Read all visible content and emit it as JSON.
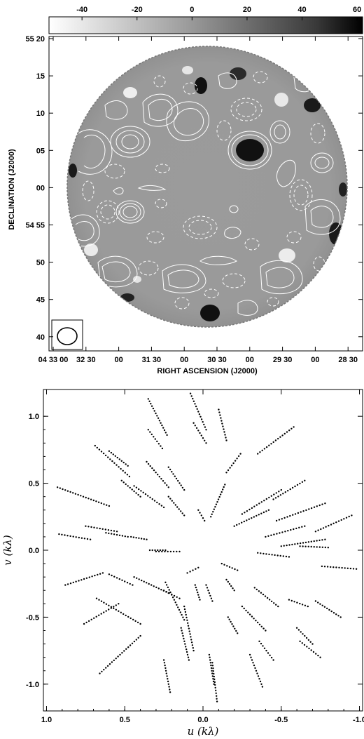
{
  "colorbar": {
    "ticks": [
      "-40",
      "-20",
      "0",
      "20",
      "40",
      "60"
    ],
    "values": [
      -40,
      -20,
      0,
      20,
      40,
      60
    ],
    "range": [
      -52,
      62
    ]
  },
  "map": {
    "xlabel": "RIGHT ASCENSION (J2000)",
    "ylabel": "DECLINATION (J2000)",
    "x_ticks": [
      "04 33 00",
      "32 30",
      "00",
      "31 30",
      "00",
      "30 30",
      "00",
      "29 30",
      "00",
      "28 30"
    ],
    "y_ticks": [
      "55 20",
      "15",
      "10",
      "05",
      "00",
      "54 55",
      "50",
      "45",
      "40"
    ]
  },
  "chart_data": {
    "type": "scatter",
    "title": "",
    "xlabel": "u (kλ)",
    "ylabel": "v (kλ)",
    "xlim": [
      1.02,
      -1.02
    ],
    "ylim": [
      -1.2,
      1.2
    ],
    "x_ticks": [
      "1.0",
      "0.5",
      "0.0",
      "-0.5",
      "-1.0"
    ],
    "y_ticks": [
      "1.0",
      "0.5",
      "0.0",
      "-0.5",
      "-1.0"
    ],
    "tracks": [
      {
        "x": [
          0.92,
          0.72
        ],
        "y": [
          0.12,
          0.08
        ]
      },
      {
        "x": [
          0.62,
          0.48
        ],
        "y": [
          0.13,
          0.1
        ]
      },
      {
        "x": [
          0.46,
          0.36
        ],
        "y": [
          0.1,
          0.08
        ]
      },
      {
        "x": [
          0.34,
          0.24
        ],
        "y": [
          0.0,
          0.0
        ]
      },
      {
        "x": [
          0.93,
          0.6
        ],
        "y": [
          0.47,
          0.33
        ]
      },
      {
        "x": [
          0.75,
          0.55
        ],
        "y": [
          0.18,
          0.14
        ]
      },
      {
        "x": [
          0.69,
          0.47
        ],
        "y": [
          0.78,
          0.55
        ]
      },
      {
        "x": [
          0.6,
          0.48
        ],
        "y": [
          0.74,
          0.63
        ]
      },
      {
        "x": [
          0.52,
          0.4
        ],
        "y": [
          0.52,
          0.4
        ]
      },
      {
        "x": [
          0.44,
          0.25
        ],
        "y": [
          0.48,
          0.32
        ]
      },
      {
        "x": [
          0.36,
          0.22
        ],
        "y": [
          0.66,
          0.47
        ]
      },
      {
        "x": [
          0.35,
          0.26
        ],
        "y": [
          0.9,
          0.76
        ]
      },
      {
        "x": [
          0.35,
          0.23
        ],
        "y": [
          1.13,
          0.86
        ]
      },
      {
        "x": [
          0.22,
          0.12
        ],
        "y": [
          0.62,
          0.45
        ]
      },
      {
        "x": [
          0.22,
          0.12
        ],
        "y": [
          0.4,
          0.26
        ]
      },
      {
        "x": [
          0.08,
          -0.02
        ],
        "y": [
          1.17,
          0.9
        ]
      },
      {
        "x": [
          0.06,
          -0.02
        ],
        "y": [
          0.95,
          0.8
        ]
      },
      {
        "x": [
          0.03,
          -0.01
        ],
        "y": [
          0.3,
          0.22
        ]
      },
      {
        "x": [
          -0.15,
          -0.1
        ],
        "y": [
          0.82,
          1.05
        ]
      },
      {
        "x": [
          -0.15,
          -0.24
        ],
        "y": [
          0.58,
          0.72
        ]
      },
      {
        "x": [
          -0.05,
          -0.14
        ],
        "y": [
          0.25,
          0.49
        ]
      },
      {
        "x": [
          -0.25,
          -0.5
        ],
        "y": [
          0.27,
          0.45
        ]
      },
      {
        "x": [
          -0.2,
          -0.42
        ],
        "y": [
          0.18,
          0.3
        ]
      },
      {
        "x": [
          -0.35,
          -0.58
        ],
        "y": [
          0.72,
          0.92
        ]
      },
      {
        "x": [
          -0.45,
          -0.65
        ],
        "y": [
          0.38,
          0.52
        ]
      },
      {
        "x": [
          -0.47,
          -0.78
        ],
        "y": [
          0.22,
          0.35
        ]
      },
      {
        "x": [
          -0.4,
          -0.65
        ],
        "y": [
          0.1,
          0.18
        ]
      },
      {
        "x": [
          -0.72,
          -0.95
        ],
        "y": [
          0.14,
          0.26
        ]
      },
      {
        "x": [
          -0.5,
          -0.78
        ],
        "y": [
          0.03,
          0.08
        ]
      },
      {
        "x": [
          -0.12,
          -0.22
        ],
        "y": [
          -0.1,
          -0.15
        ]
      },
      {
        "x": [
          -0.35,
          -0.55
        ],
        "y": [
          -0.02,
          -0.05
        ]
      },
      {
        "x": [
          -0.62,
          -0.8
        ],
        "y": [
          0.03,
          0.02
        ]
      },
      {
        "x": [
          -0.76,
          -0.98
        ],
        "y": [
          -0.12,
          -0.14
        ]
      },
      {
        "x": [
          -0.33,
          -0.48
        ],
        "y": [
          -0.28,
          -0.42
        ]
      },
      {
        "x": [
          -0.55,
          -0.67
        ],
        "y": [
          -0.37,
          -0.42
        ]
      },
      {
        "x": [
          -0.72,
          -0.88
        ],
        "y": [
          -0.38,
          -0.5
        ]
      },
      {
        "x": [
          -0.6,
          -0.7
        ],
        "y": [
          -0.58,
          -0.7
        ]
      },
      {
        "x": [
          -0.62,
          -0.75
        ],
        "y": [
          -0.68,
          -0.8
        ]
      },
      {
        "x": [
          -0.25,
          -0.4
        ],
        "y": [
          -0.42,
          -0.6
        ]
      },
      {
        "x": [
          -0.36,
          -0.45
        ],
        "y": [
          -0.68,
          -0.82
        ]
      },
      {
        "x": [
          -0.3,
          -0.38
        ],
        "y": [
          -0.78,
          -1.02
        ]
      },
      {
        "x": [
          -0.15,
          -0.2
        ],
        "y": [
          -0.22,
          -0.3
        ]
      },
      {
        "x": [
          -0.16,
          -0.22
        ],
        "y": [
          -0.5,
          -0.62
        ]
      },
      {
        "x": [
          -0.04,
          -0.07
        ],
        "y": [
          -0.78,
          -1.0
        ]
      },
      {
        "x": [
          -0.06,
          -0.09
        ],
        "y": [
          -0.84,
          -1.13
        ]
      },
      {
        "x": [
          -0.02,
          -0.06
        ],
        "y": [
          -0.26,
          -0.38
        ]
      },
      {
        "x": [
          0.12,
          0.06
        ],
        "y": [
          -0.42,
          -0.75
        ]
      },
      {
        "x": [
          0.14,
          0.09
        ],
        "y": [
          -0.58,
          -0.82
        ]
      },
      {
        "x": [
          0.25,
          0.21
        ],
        "y": [
          -0.82,
          -1.06
        ]
      },
      {
        "x": [
          0.05,
          0.02
        ],
        "y": [
          -0.26,
          -0.37
        ]
      },
      {
        "x": [
          0.24,
          0.12
        ],
        "y": [
          -0.24,
          -0.52
        ]
      },
      {
        "x": [
          0.25,
          0.15
        ],
        "y": [
          -0.3,
          -0.36
        ]
      },
      {
        "x": [
          0.44,
          0.22
        ],
        "y": [
          -0.2,
          -0.32
        ]
      },
      {
        "x": [
          0.6,
          0.45
        ],
        "y": [
          -0.18,
          -0.26
        ]
      },
      {
        "x": [
          0.68,
          0.4
        ],
        "y": [
          -0.36,
          -0.55
        ]
      },
      {
        "x": [
          0.76,
          0.54
        ],
        "y": [
          -0.55,
          -0.4
        ]
      },
      {
        "x": [
          0.88,
          0.64
        ],
        "y": [
          -0.26,
          -0.17
        ]
      },
      {
        "x": [
          0.66,
          0.4
        ],
        "y": [
          -0.92,
          -0.64
        ]
      },
      {
        "x": [
          0.3,
          0.15
        ],
        "y": [
          -0.01,
          -0.01
        ]
      },
      {
        "x": [
          0.1,
          0.03
        ],
        "y": [
          -0.17,
          -0.13
        ]
      }
    ]
  }
}
